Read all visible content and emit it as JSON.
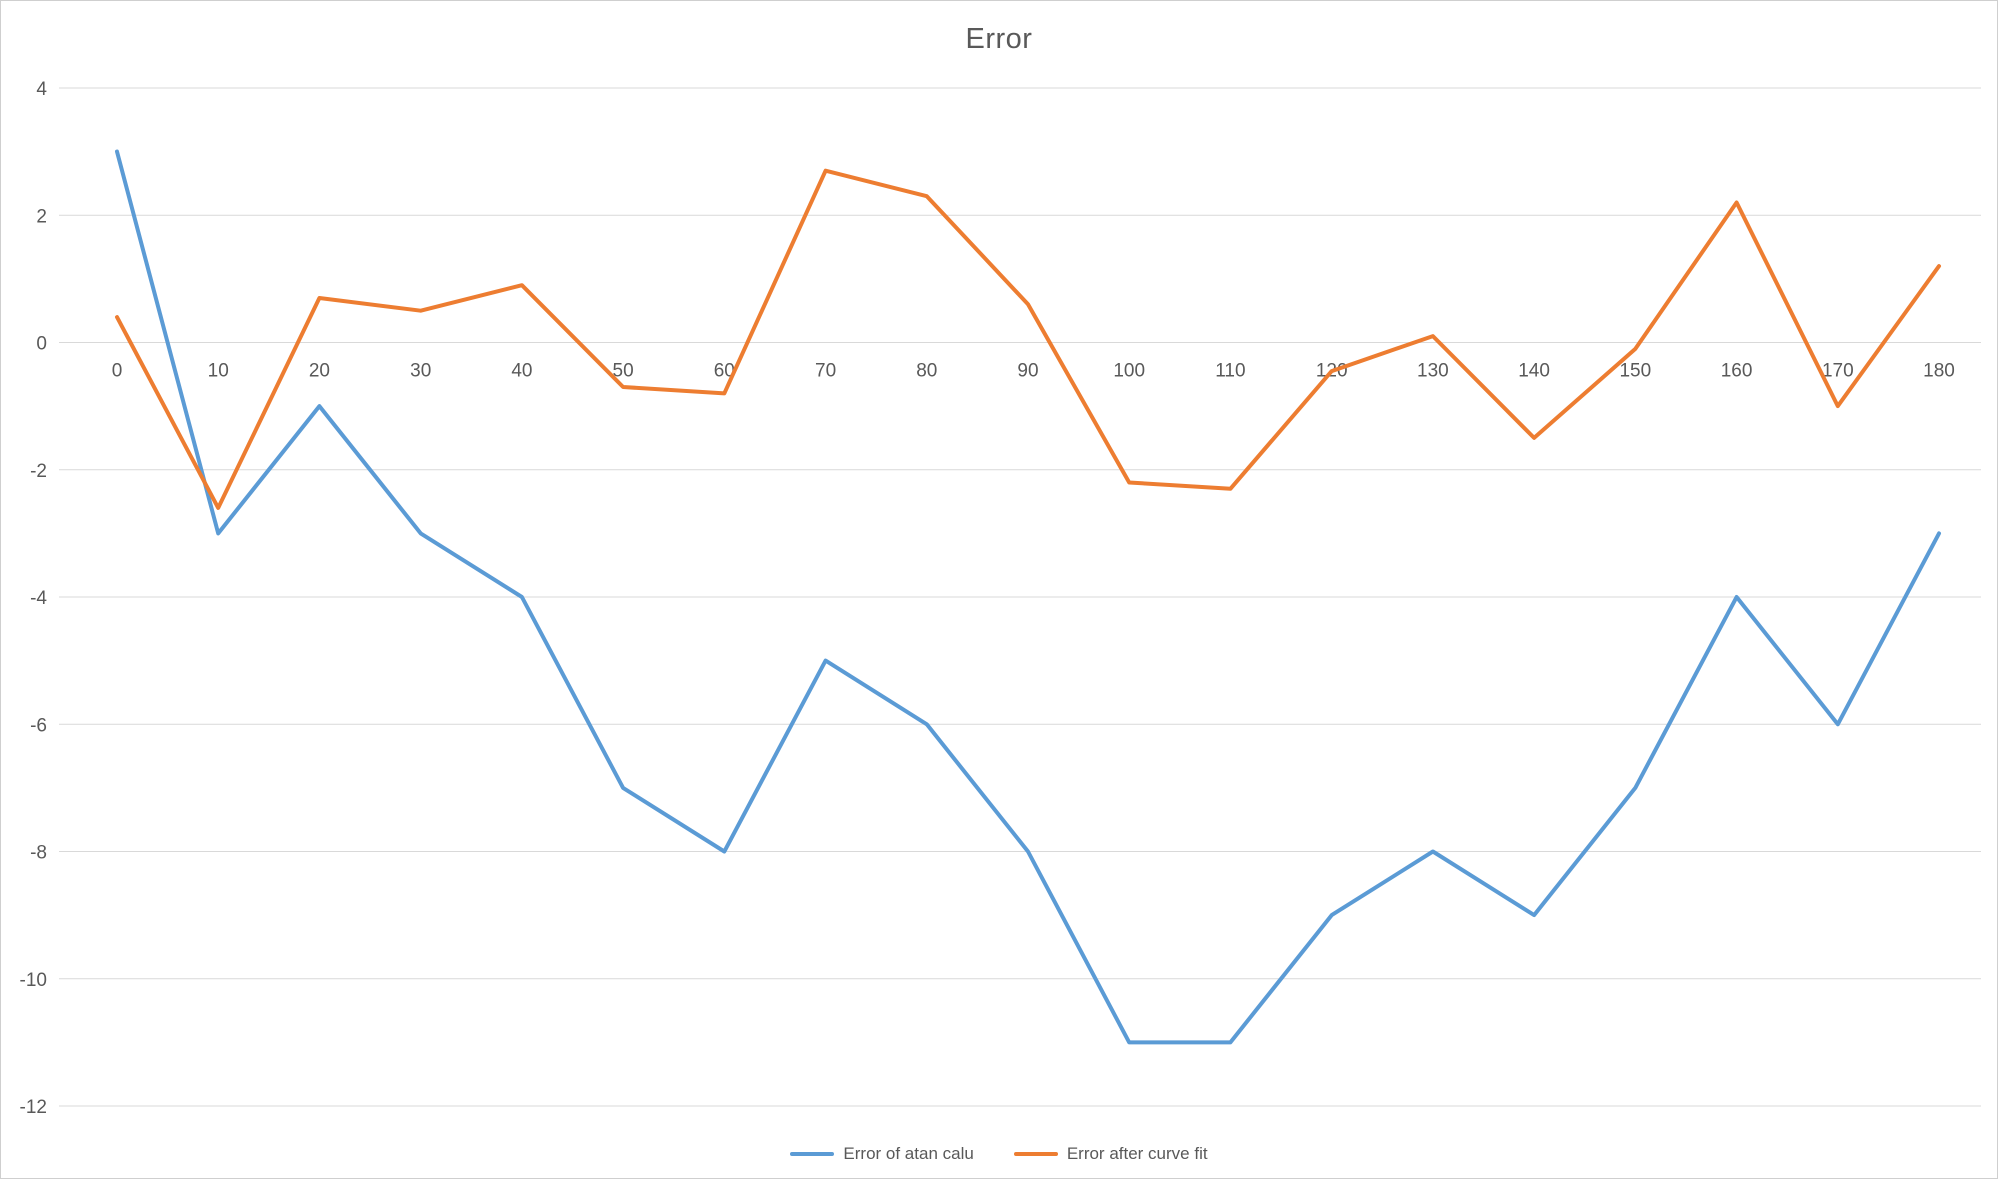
{
  "title": "Error",
  "colors": {
    "series1": "#5B9BD5",
    "series2": "#ED7D31",
    "grid": "#D9D9D9",
    "axis_text": "#595959",
    "frame_border": "#CFCFCF",
    "background": "#FFFFFF"
  },
  "legend": {
    "position": "bottom",
    "entries": [
      {
        "label": "Error of atan calu",
        "color": "#5B9BD5"
      },
      {
        "label": "Error after curve fit",
        "color": "#ED7D31"
      }
    ]
  },
  "chart_data": {
    "type": "line",
    "title": "Error",
    "x": [
      0,
      10,
      20,
      30,
      40,
      50,
      60,
      70,
      80,
      90,
      100,
      110,
      120,
      130,
      140,
      150,
      160,
      170,
      180
    ],
    "series": [
      {
        "name": "Error of atan calu",
        "color": "#5B9BD5",
        "values": [
          3,
          -3,
          -1,
          -3,
          -4,
          -7,
          -8,
          -5,
          -6,
          -8,
          -11,
          -11,
          -9,
          -8,
          -9,
          -7,
          -4,
          -6,
          -3
        ]
      },
      {
        "name": "Error after curve fit",
        "color": "#ED7D31",
        "values": [
          0.4,
          -2.6,
          0.7,
          0.5,
          0.9,
          -0.7,
          -0.8,
          2.7,
          2.3,
          0.6,
          -2.2,
          -2.3,
          -0.45,
          0.1,
          -1.5,
          -0.1,
          2.2,
          -1.0,
          1.2
        ]
      }
    ],
    "xlabel": "",
    "ylabel": "",
    "ylim": [
      -12,
      4
    ],
    "ytick_step": 2,
    "yticks": [
      4,
      2,
      0,
      -2,
      -4,
      -6,
      -8,
      -10,
      -12
    ],
    "grid": true,
    "legend_position": "bottom",
    "axis_text_color": "#595959",
    "grid_color": "#D9D9D9"
  }
}
